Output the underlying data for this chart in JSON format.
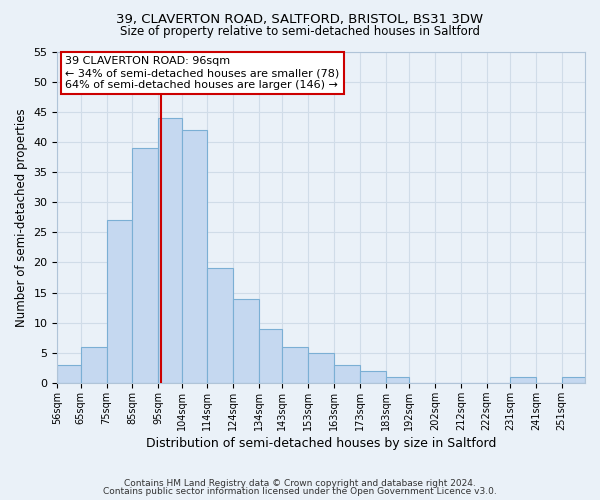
{
  "title_line1": "39, CLAVERTON ROAD, SALTFORD, BRISTOL, BS31 3DW",
  "title_line2": "Size of property relative to semi-detached houses in Saltford",
  "xlabel": "Distribution of semi-detached houses by size in Saltford",
  "ylabel": "Number of semi-detached properties",
  "bar_left_edges": [
    56,
    65,
    75,
    85,
    95,
    104,
    114,
    124,
    134,
    143,
    153,
    163,
    173,
    183,
    192,
    202,
    212,
    222,
    231,
    241,
    251
  ],
  "bar_widths": [
    9,
    10,
    10,
    10,
    9,
    10,
    10,
    10,
    9,
    10,
    10,
    10,
    10,
    9,
    10,
    10,
    10,
    9,
    10,
    10,
    9
  ],
  "bar_heights": [
    3,
    6,
    27,
    39,
    44,
    42,
    19,
    14,
    9,
    6,
    5,
    3,
    2,
    1,
    0,
    0,
    0,
    0,
    1,
    0,
    1
  ],
  "bar_color": "#c5d8f0",
  "bar_edgecolor": "#7bafd4",
  "vline_x": 96,
  "vline_color": "#cc0000",
  "annotation_title": "39 CLAVERTON ROAD: 96sqm",
  "annotation_line1": "← 34% of semi-detached houses are smaller (78)",
  "annotation_line2": "64% of semi-detached houses are larger (146) →",
  "annotation_box_edgecolor": "#cc0000",
  "annotation_box_facecolor": "#ffffff",
  "ylim": [
    0,
    55
  ],
  "yticks": [
    0,
    5,
    10,
    15,
    20,
    25,
    30,
    35,
    40,
    45,
    50,
    55
  ],
  "xtick_labels": [
    "56sqm",
    "65sqm",
    "75sqm",
    "85sqm",
    "95sqm",
    "104sqm",
    "114sqm",
    "124sqm",
    "134sqm",
    "143sqm",
    "153sqm",
    "163sqm",
    "173sqm",
    "183sqm",
    "192sqm",
    "202sqm",
    "212sqm",
    "222sqm",
    "231sqm",
    "241sqm",
    "251sqm"
  ],
  "footer_line1": "Contains HM Land Registry data © Crown copyright and database right 2024.",
  "footer_line2": "Contains public sector information licensed under the Open Government Licence v3.0.",
  "grid_color": "#d0dce8",
  "background_color": "#eaf1f8"
}
